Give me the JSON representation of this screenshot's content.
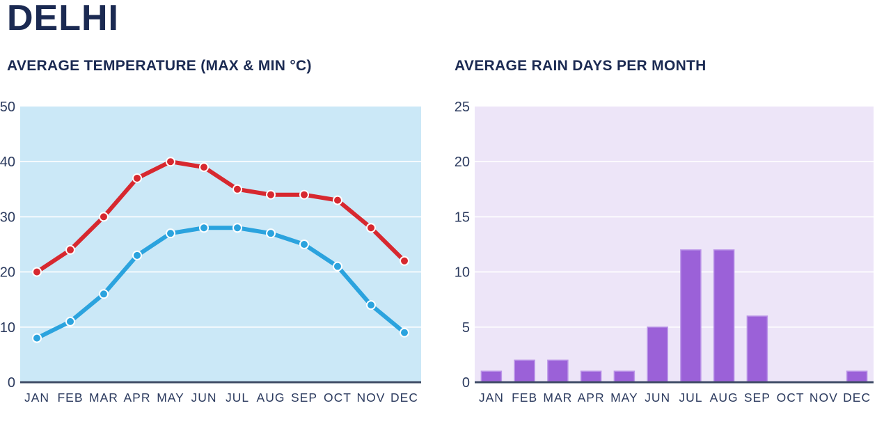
{
  "title": "DELHI",
  "colors": {
    "heading_navy": "#1b2a52",
    "axis_label": "#2b3a5e",
    "axis_line": "#3f4c66",
    "gridline": "#ffffff"
  },
  "chart_data": [
    {
      "id": "temperature",
      "type": "line",
      "title": "AVERAGE TEMPERATURE (MAX & MIN °C)",
      "categories": [
        "JAN",
        "FEB",
        "MAR",
        "APR",
        "MAY",
        "JUN",
        "JUL",
        "AUG",
        "SEP",
        "OCT",
        "NOV",
        "DEC"
      ],
      "series": [
        {
          "name": "Max",
          "color": "#d7282f",
          "values": [
            20,
            24,
            30,
            37,
            40,
            39,
            35,
            34,
            34,
            33,
            28,
            22
          ]
        },
        {
          "name": "Min",
          "color": "#2ba3de",
          "values": [
            8,
            11,
            16,
            23,
            27,
            28,
            28,
            27,
            25,
            21,
            14,
            9
          ]
        }
      ],
      "xlabel": "",
      "ylabel": "",
      "ylim": [
        0,
        50
      ],
      "ytick_step": 10,
      "plot_bg": "#cbe8f7",
      "grid": true,
      "legend": "none",
      "marker": "circle"
    },
    {
      "id": "rain-days",
      "type": "bar",
      "title": "AVERAGE RAIN DAYS PER MONTH",
      "categories": [
        "JAN",
        "FEB",
        "MAR",
        "APR",
        "MAY",
        "JUN",
        "JUL",
        "AUG",
        "SEP",
        "OCT",
        "NOV",
        "DEC"
      ],
      "values": [
        1,
        2,
        2,
        1,
        1,
        5,
        12,
        12,
        6,
        0,
        0,
        1
      ],
      "xlabel": "",
      "ylabel": "",
      "ylim": [
        0,
        25
      ],
      "ytick_step": 5,
      "plot_bg": "#ede5f8",
      "bar_color": "#9b61d8",
      "bar_edge": "#bb95e8",
      "grid": true,
      "legend": "none"
    }
  ]
}
